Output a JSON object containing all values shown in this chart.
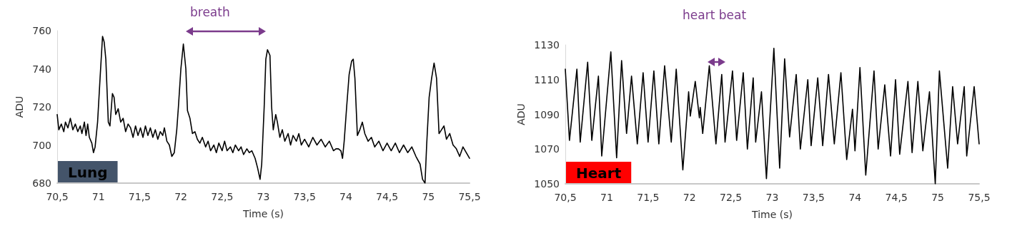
{
  "chart_data": [
    {
      "type": "line",
      "title": "Lung",
      "xlabel": "Time (s)",
      "ylabel": "ADU",
      "annotations": [
        "breath"
      ],
      "xlim": [
        70.5,
        75.5
      ],
      "xticks": [
        {
          "value": 70.5,
          "label": "70,5"
        },
        71,
        {
          "value": 71.5,
          "label": "71,5"
        },
        72,
        {
          "value": 72.5,
          "label": "72,5"
        },
        73,
        {
          "value": 73.5,
          "label": "73,5"
        },
        74,
        {
          "value": 74.5,
          "label": "74,5"
        },
        75,
        {
          "value": 75.5,
          "label": "75,5"
        }
      ],
      "ylim": [
        680,
        760
      ],
      "yticks": [
        680,
        700,
        720,
        740,
        760
      ],
      "grid": false,
      "marker": "none",
      "x": [
        70.5,
        70.52,
        70.55,
        70.58,
        70.6,
        70.63,
        70.66,
        70.69,
        70.72,
        70.75,
        70.78,
        70.8,
        70.83,
        70.85,
        70.87,
        70.89,
        70.92,
        70.94,
        70.96,
        70.99,
        71.02,
        71.05,
        71.07,
        71.09,
        71.12,
        71.14,
        71.17,
        71.19,
        71.21,
        71.24,
        71.27,
        71.3,
        71.33,
        71.36,
        71.39,
        71.42,
        71.45,
        71.48,
        71.51,
        71.54,
        71.57,
        71.6,
        71.63,
        71.66,
        71.69,
        71.72,
        71.75,
        71.78,
        71.8,
        71.83,
        71.86,
        71.89,
        71.92,
        71.95,
        71.97,
        72.0,
        72.03,
        72.06,
        72.08,
        72.11,
        72.14,
        72.17,
        72.2,
        72.23,
        72.26,
        72.3,
        72.33,
        72.36,
        72.4,
        72.43,
        72.46,
        72.5,
        72.53,
        72.56,
        72.6,
        72.63,
        72.66,
        72.7,
        72.73,
        72.76,
        72.8,
        72.83,
        72.86,
        72.9,
        72.93,
        72.96,
        72.98,
        73.01,
        73.03,
        73.05,
        73.08,
        73.1,
        73.12,
        73.15,
        73.17,
        73.2,
        73.23,
        73.26,
        73.3,
        73.33,
        73.36,
        73.4,
        73.43,
        73.46,
        73.5,
        73.55,
        73.6,
        73.65,
        73.7,
        73.75,
        73.8,
        73.85,
        73.88,
        73.91,
        73.94,
        73.96,
        73.98,
        74.01,
        74.04,
        74.07,
        74.09,
        74.11,
        74.14,
        74.17,
        74.2,
        74.23,
        74.27,
        74.31,
        74.35,
        74.4,
        74.45,
        74.5,
        74.55,
        74.6,
        74.65,
        74.7,
        74.75,
        74.8,
        74.85,
        74.9,
        74.93,
        74.96,
        74.98,
        75.01,
        75.04,
        75.07,
        75.1,
        75.13,
        75.16,
        75.19,
        75.22,
        75.26,
        75.3,
        75.34,
        75.38,
        75.42,
        75.46,
        75.5
      ],
      "series": [
        {
          "color": "#000000",
          "values": [
            716,
            708,
            711,
            707,
            712,
            709,
            714,
            708,
            711,
            707,
            710,
            706,
            712,
            705,
            711,
            704,
            701,
            696,
            699,
            712,
            735,
            757,
            754,
            745,
            712,
            710,
            727,
            725,
            716,
            719,
            712,
            714,
            707,
            711,
            709,
            704,
            710,
            705,
            709,
            704,
            710,
            705,
            709,
            704,
            708,
            703,
            707,
            705,
            709,
            702,
            700,
            694,
            696,
            708,
            720,
            740,
            753,
            740,
            718,
            714,
            706,
            707,
            703,
            701,
            704,
            699,
            702,
            697,
            700,
            696,
            701,
            697,
            702,
            697,
            699,
            696,
            700,
            697,
            699,
            695,
            698,
            696,
            697,
            693,
            688,
            682,
            690,
            720,
            745,
            750,
            747,
            720,
            708,
            716,
            712,
            704,
            708,
            702,
            706,
            700,
            705,
            702,
            706,
            700,
            703,
            699,
            704,
            700,
            703,
            699,
            702,
            697,
            698,
            698,
            697,
            693,
            702,
            720,
            737,
            744,
            745,
            735,
            705,
            708,
            712,
            706,
            702,
            704,
            699,
            702,
            697,
            701,
            697,
            701,
            696,
            700,
            696,
            699,
            694,
            690,
            682,
            680,
            700,
            725,
            735,
            743,
            735,
            706,
            708,
            710,
            703,
            706,
            700,
            698,
            694,
            699,
            696,
            693
          ]
        }
      ]
    },
    {
      "type": "line",
      "title": "Heart",
      "xlabel": "Time (s)",
      "ylabel": "ADU",
      "annotations": [
        "heart beat"
      ],
      "xlim": [
        70.5,
        75.5
      ],
      "xticks": [
        {
          "value": 70.5,
          "label": "70,5"
        },
        71,
        {
          "value": 71.5,
          "label": "71,5"
        },
        72,
        {
          "value": 72.5,
          "label": "72,5"
        },
        73,
        {
          "value": 73.5,
          "label": "73,5"
        },
        74,
        {
          "value": 74.5,
          "label": "74,5"
        },
        75,
        {
          "value": 75.5,
          "label": "75,5"
        }
      ],
      "ylim": [
        1050,
        1130
      ],
      "yticks": [
        1050,
        1070,
        1090,
        1110,
        1130
      ],
      "grid": false,
      "marker": "none",
      "x": [
        70.5,
        70.55,
        70.64,
        70.68,
        70.77,
        70.82,
        70.9,
        70.94,
        71.05,
        71.12,
        71.18,
        71.24,
        71.3,
        71.37,
        71.44,
        71.5,
        71.57,
        71.63,
        71.7,
        71.78,
        71.84,
        71.92,
        71.99,
        72.01,
        72.07,
        72.12,
        72.13,
        72.16,
        72.24,
        72.32,
        72.39,
        72.43,
        72.52,
        72.57,
        72.65,
        72.7,
        72.77,
        72.8,
        72.87,
        72.93,
        73.02,
        73.09,
        73.15,
        73.21,
        73.29,
        73.34,
        73.43,
        73.47,
        73.55,
        73.61,
        73.68,
        73.75,
        73.83,
        73.9,
        73.97,
        74.0,
        74.06,
        74.13,
        74.23,
        74.28,
        74.36,
        74.43,
        74.49,
        74.54,
        74.64,
        74.69,
        74.76,
        74.82,
        74.9,
        74.97,
        75.02,
        75.12,
        75.18,
        75.24,
        75.32,
        75.35,
        75.44,
        75.5
      ],
      "series": [
        {
          "color": "#000000",
          "values": [
            1116,
            1075,
            1116,
            1074,
            1120,
            1075,
            1112,
            1066,
            1126,
            1065,
            1121,
            1079,
            1112,
            1073,
            1114,
            1074,
            1115,
            1073,
            1118,
            1074,
            1116,
            1058,
            1103,
            1089,
            1109,
            1088,
            1094,
            1079,
            1118,
            1073,
            1113,
            1074,
            1115,
            1075,
            1114,
            1070,
            1111,
            1074,
            1103,
            1053,
            1128,
            1059,
            1122,
            1077,
            1113,
            1070,
            1110,
            1072,
            1111,
            1072,
            1113,
            1073,
            1114,
            1064,
            1093,
            1069,
            1117,
            1055,
            1115,
            1070,
            1107,
            1066,
            1110,
            1067,
            1109,
            1068,
            1109,
            1069,
            1103,
            1050,
            1115,
            1059,
            1106,
            1073,
            1106,
            1066,
            1106,
            1073
          ]
        }
      ]
    }
  ]
}
